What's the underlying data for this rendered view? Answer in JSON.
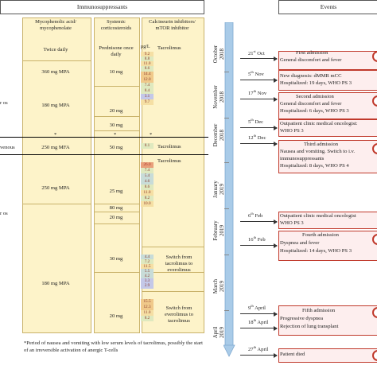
{
  "headers": {
    "immunosuppressants": "Immunosuppressants",
    "events": "Events"
  },
  "columns": {
    "mpa": "Mycophenolic acid/ mycophenolate",
    "steroids": "Systemic corticosteroids",
    "cni": "Calcineurin inhibitors/ mTOR inhibitor",
    "prednisone": "Prednisone once daily",
    "unit": "μg/L"
  },
  "left_edge": {
    "os1": "r os",
    "venous": "venous",
    "os2": "r os"
  },
  "mpa_rows": [
    "Twice daily",
    "360 mg MPA",
    "180 mg MPA",
    "250 mg MFA",
    "250 mg MPA",
    "180 mg MPA"
  ],
  "steroid_rows": [
    "10 mg",
    "20 mg",
    "30 mg",
    "50 mg",
    "25 mg",
    "80 mg",
    "20 mg",
    "30 mg",
    "20 mg"
  ],
  "cni_labels": [
    "Tacrolimus",
    "Tacrolimus",
    "Tacrolimus",
    "Switch from tacrolimus to everolimus",
    "Switch from everolimus to tacrolimus"
  ],
  "asterisks": [
    "*",
    "*",
    "*"
  ],
  "tac_levels": [
    "9.2",
    "8.8",
    "11.0",
    "8.6",
    "14.4",
    "12.0",
    "7.4",
    "8.4",
    "3.1",
    "9.7",
    "8.1",
    "26.0",
    "7.4",
    "5.4",
    "4.6",
    "8.6",
    "11.0",
    "8.2",
    "10.0",
    "4.4",
    "7.2",
    "11.5",
    "5.5",
    "4.2",
    "3.3",
    "2.9",
    "15.5",
    "12.3",
    "11.0",
    "8.2"
  ],
  "footnote": "*Period of nausea and vomiting with low serum levels of tacrolimus, possibly the start of an irreversible activation of anergic T-cells",
  "months": [
    {
      "m": "October",
      "y": "2018"
    },
    {
      "m": "November",
      "y": "2018"
    },
    {
      "m": "December",
      "y": "2018"
    },
    {
      "m": "January",
      "y": "2019"
    },
    {
      "m": "February",
      "y": "2019"
    },
    {
      "m": "March",
      "y": "2019"
    },
    {
      "m": "April",
      "y": "2019"
    }
  ],
  "dates": {
    "d1": "21",
    "s1": "st",
    "m1": " Oct",
    "d2": "5",
    "s2": "th",
    "m2": " Nov",
    "d3": "17",
    "s3": "th",
    "m3": " Nov",
    "d4": "5",
    "s4": "th",
    "m4": " Dec",
    "d5": "12",
    "s5": "th",
    "m5": " Dec",
    "d6": "6",
    "s6": "th",
    "m6": " Feb",
    "d7": "16",
    "s7": "th",
    "m7": " Feb",
    "d8": "9",
    "s8": "th",
    "m8": " April",
    "d9": "18",
    "s9": "th",
    "m9": " April",
    "d10": "27",
    "s10": "th",
    "m10": " April"
  },
  "events": {
    "e1": [
      "First admission",
      "General discomfort and fever"
    ],
    "e2": [
      "New diagnosis: dMMR mCC",
      "Hospitalized: 19 days, WHO PS 3"
    ],
    "e3": [
      "Second admission",
      "General discomfort and fever",
      "Hospitalized: 6 days, WHO PS 3"
    ],
    "e4": [
      "Outpatient clinic medical oncologist:",
      "WHO PS 3"
    ],
    "e5": [
      "Third admission",
      "Nausea and vomiting. Switch to i.v.",
      "immunosuppressants",
      "Hospitalized: 8 days, WHO PS 4"
    ],
    "e6": [
      "Outpatient clinic medical oncologist",
      "WHO PS 3"
    ],
    "e7": [
      "Fourth admission",
      "Dyspnea and fever",
      "Hospitalized: 14 days, WHO PS 3"
    ],
    "e8": [
      "Fifth admission",
      "Progressive dyspnea",
      "Rejection of lung transplant"
    ],
    "e9": [
      "Patient died"
    ]
  },
  "colors": {
    "col_bg": "#fdf3c9",
    "event_border": "#c0392b",
    "timeline": "#a9cbe8"
  }
}
